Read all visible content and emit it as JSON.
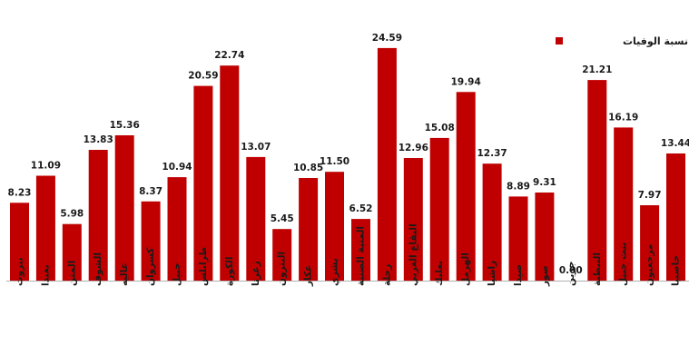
{
  "chart_data": {
    "type": "bar",
    "categories": [
      "بيروت",
      "بعبدا",
      "المتن",
      "الشوف",
      "عاليه",
      "كسروان",
      "جبيل",
      "طرابلس",
      "الكورة",
      "زغرتا",
      "البترون",
      "عكار",
      "بشري",
      "المنية الضنية",
      "زحلة",
      "البقاع الغربي",
      "بعلبك",
      "الهرمل",
      "راشيا",
      "صيدا",
      "صور",
      "جزين",
      "النبطية",
      "بنت جبيل",
      "مرجعيون",
      "حاصبيا"
    ],
    "series": [
      {
        "name": "نسبة الوفيات",
        "values": [
          8.23,
          11.09,
          5.98,
          13.83,
          15.36,
          8.37,
          10.94,
          20.59,
          22.74,
          13.07,
          5.45,
          10.85,
          11.5,
          6.52,
          24.59,
          12.96,
          15.08,
          19.94,
          12.37,
          8.89,
          9.31,
          0.0,
          21.21,
          16.19,
          7.97,
          13.44
        ],
        "labels": [
          "8.23",
          "11.09",
          "5.98",
          "13.83",
          "15.36",
          "8.37",
          "10.94",
          "20.59",
          "22.74",
          "13.07",
          "5.45",
          "10.85",
          "11.50",
          "6.52",
          "24.59",
          "12.96",
          "15.08",
          "19.94",
          "12.37",
          "8.89",
          "9.31",
          "0.00",
          "21.21",
          "16.19",
          "7.97",
          "13.44"
        ],
        "color": "#c00000"
      }
    ],
    "ylim": [
      0,
      26.5
    ],
    "grid": false,
    "legend_position": "top-right",
    "axis_color": "#b0b0b0"
  }
}
